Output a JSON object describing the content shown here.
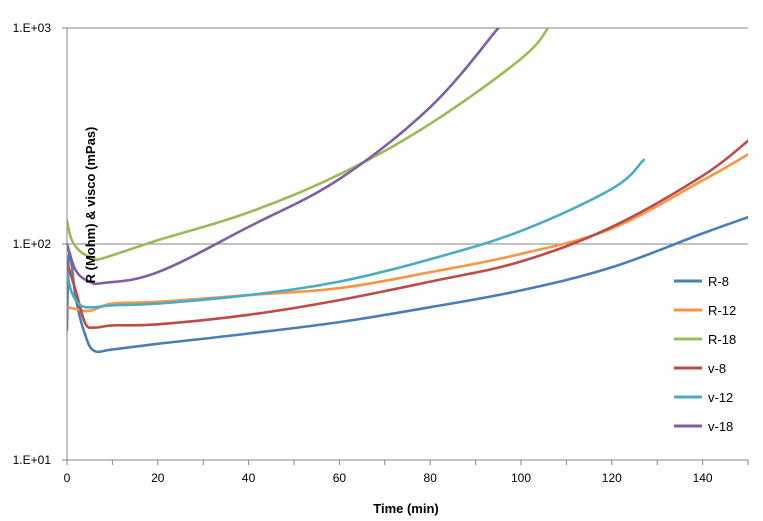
{
  "chart_data": {
    "type": "line",
    "xlabel": "Time (min)",
    "ylabel": "R (Mohm) & visco (mPas)",
    "xlim": [
      0,
      150
    ],
    "ylim": [
      10,
      1000
    ],
    "y_scale": "log",
    "x_ticks": [
      0,
      20,
      40,
      60,
      80,
      100,
      120,
      140
    ],
    "y_ticks": [
      {
        "value": 10,
        "label": "1.E+01"
      },
      {
        "value": 100,
        "label": "1.E+02"
      },
      {
        "value": 1000,
        "label": "1.E+03"
      }
    ],
    "grid": "horizontal major lines",
    "legend_position": "right",
    "series": [
      {
        "name": "R-8",
        "color": "#4a7ebb",
        "points": [
          [
            0,
            40
          ],
          [
            0.5,
            90
          ],
          [
            2,
            55
          ],
          [
            4,
            38
          ],
          [
            6,
            32
          ],
          [
            10,
            32.5
          ],
          [
            20,
            34.5
          ],
          [
            40,
            38.5
          ],
          [
            60,
            43.5
          ],
          [
            80,
            51
          ],
          [
            100,
            61
          ],
          [
            120,
            78
          ],
          [
            140,
            112
          ],
          [
            150,
            133
          ]
        ]
      },
      {
        "name": "R-12",
        "color": "#f79646",
        "points": [
          [
            0,
            51
          ],
          [
            2,
            50
          ],
          [
            5,
            49
          ],
          [
            10,
            53
          ],
          [
            20,
            54
          ],
          [
            40,
            58
          ],
          [
            60,
            62.5
          ],
          [
            80,
            74
          ],
          [
            100,
            90
          ],
          [
            120,
            118
          ],
          [
            140,
            197
          ],
          [
            150,
            260
          ]
        ]
      },
      {
        "name": "R-18",
        "color": "#9bbb59",
        "points": [
          [
            0,
            128
          ],
          [
            1,
            105
          ],
          [
            3,
            92
          ],
          [
            6,
            86
          ],
          [
            8,
            86
          ],
          [
            20,
            104
          ],
          [
            40,
            140
          ],
          [
            60,
            210
          ],
          [
            80,
            360
          ],
          [
            100,
            720
          ],
          [
            106,
            1000
          ]
        ]
      },
      {
        "name": "v-8",
        "color": "#be4b48",
        "points": [
          [
            0,
            82
          ],
          [
            2,
            60
          ],
          [
            4,
            43
          ],
          [
            6,
            41
          ],
          [
            10,
            42
          ],
          [
            20,
            42.5
          ],
          [
            40,
            47
          ],
          [
            60,
            55
          ],
          [
            80,
            67
          ],
          [
            100,
            83
          ],
          [
            120,
            120
          ],
          [
            140,
            207
          ],
          [
            150,
            300
          ]
        ]
      },
      {
        "name": "v-12",
        "color": "#4bacc6",
        "points": [
          [
            0,
            75
          ],
          [
            1,
            60
          ],
          [
            3,
            52
          ],
          [
            6,
            51
          ],
          [
            10,
            52
          ],
          [
            20,
            53
          ],
          [
            40,
            58
          ],
          [
            60,
            67
          ],
          [
            80,
            85
          ],
          [
            100,
            115
          ],
          [
            120,
            180
          ],
          [
            127,
            245
          ]
        ]
      },
      {
        "name": "v-18",
        "color": "#7f5fa2",
        "points": [
          [
            0,
            100
          ],
          [
            2,
            75
          ],
          [
            5,
            67
          ],
          [
            8,
            66
          ],
          [
            20,
            74
          ],
          [
            40,
            120
          ],
          [
            60,
            200
          ],
          [
            80,
            430
          ],
          [
            95,
            1000
          ]
        ]
      }
    ]
  }
}
